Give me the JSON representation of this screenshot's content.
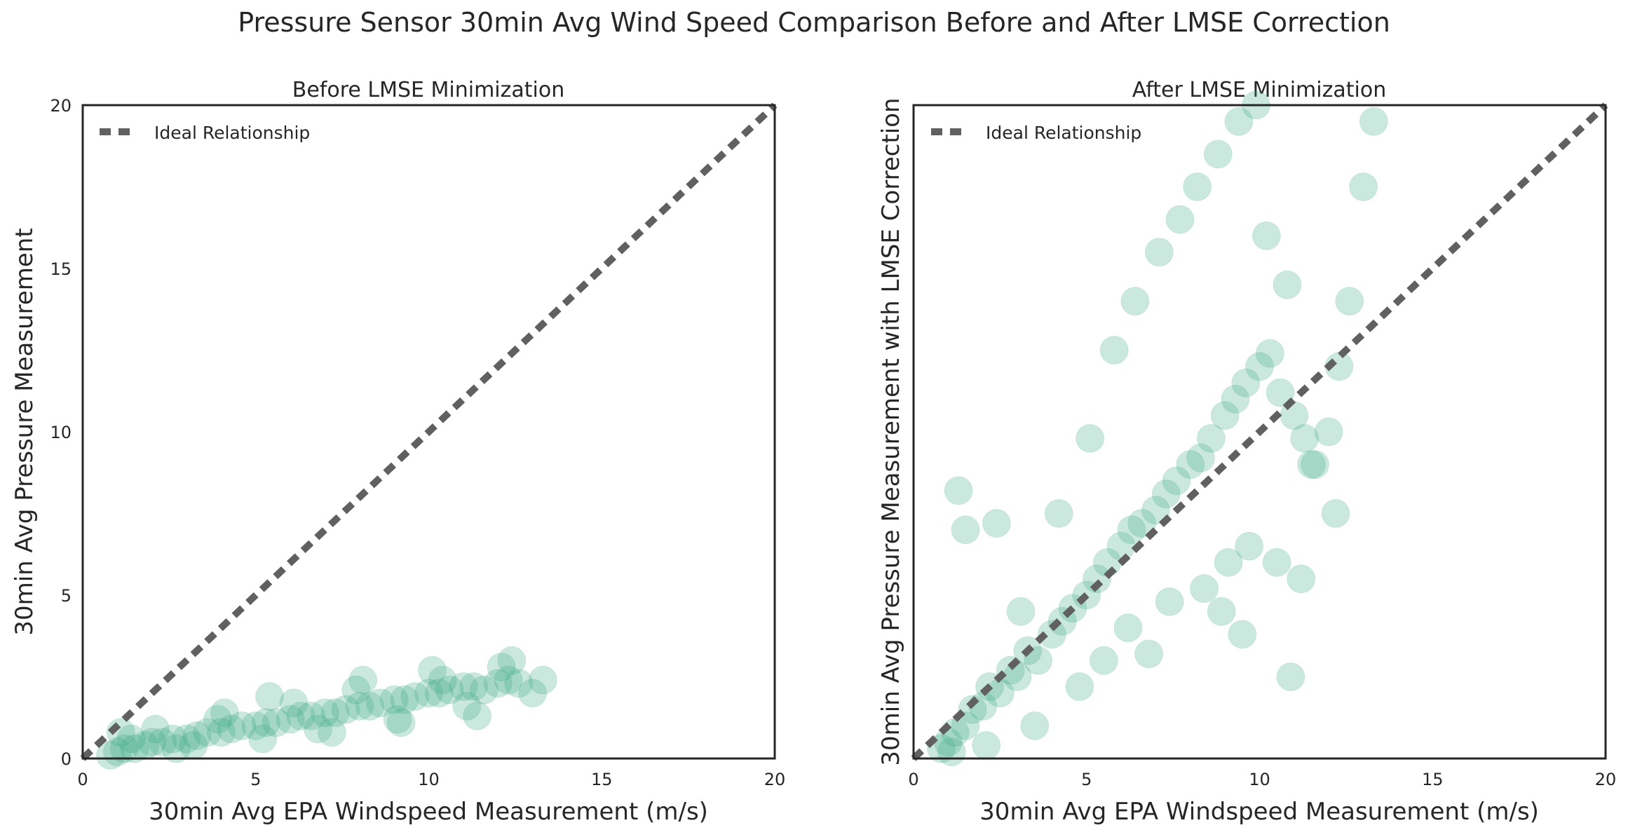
{
  "figure": {
    "title": "Pressure Sensor 30min Avg Wind Speed Comparison Before and After LMSE Correction"
  },
  "colors": {
    "points": "#3aa981",
    "ideal_line": "#606060",
    "axes": "#262626"
  },
  "chart_data": [
    {
      "type": "scatter",
      "title": "Before LMSE Minimization",
      "xlabel": "30min Avg EPA Windspeed Measurement (m/s)",
      "ylabel": "30min Avg Pressure Measurement",
      "xlim": [
        0,
        20
      ],
      "ylim": [
        0,
        20
      ],
      "xticks": [
        0,
        5,
        10,
        15,
        20
      ],
      "yticks": [
        0,
        5,
        10,
        15,
        20
      ],
      "ytick_labels_visible": true,
      "grid": false,
      "legend": {
        "position": "top-left",
        "entries": [
          "Ideal Relationship"
        ]
      },
      "reference_line": {
        "name": "Ideal Relationship",
        "x": [
          0,
          20
        ],
        "y": [
          0,
          20
        ],
        "style": "dashed"
      },
      "point_alpha": 0.12,
      "series": [
        {
          "x": [
            0.8,
            1.0,
            1.2,
            1.5,
            1.8,
            2.0,
            2.3,
            2.6,
            3.0,
            3.3,
            3.6,
            4.0,
            4.3,
            4.6,
            5.0,
            5.3,
            5.6,
            6.0,
            6.3,
            6.6,
            7.0,
            7.3,
            7.6,
            8.0,
            8.3,
            8.6,
            9.0,
            9.3,
            9.6,
            10.0,
            10.3,
            10.6,
            11.0,
            11.3,
            11.6,
            12.0,
            12.3,
            12.6,
            13.0,
            13.3,
            1.1,
            2.1,
            3.2,
            4.1,
            5.2,
            6.1,
            7.2,
            8.1,
            9.2,
            10.1,
            11.1,
            12.1,
            1.4,
            2.7,
            3.9,
            5.4,
            6.8,
            7.9,
            9.1,
            10.4,
            11.4,
            12.4
          ],
          "y": [
            0.1,
            0.2,
            0.3,
            0.3,
            0.4,
            0.5,
            0.5,
            0.6,
            0.6,
            0.7,
            0.8,
            0.8,
            0.9,
            1.0,
            1.0,
            1.1,
            1.1,
            1.2,
            1.3,
            1.3,
            1.4,
            1.4,
            1.5,
            1.6,
            1.6,
            1.7,
            1.8,
            1.8,
            1.9,
            2.0,
            2.0,
            2.1,
            2.2,
            2.2,
            2.1,
            2.3,
            2.4,
            2.3,
            2.0,
            2.4,
            0.8,
            0.9,
            0.4,
            1.4,
            0.6,
            1.7,
            0.8,
            2.4,
            1.1,
            2.7,
            1.6,
            2.8,
            0.6,
            0.3,
            1.2,
            1.9,
            0.9,
            2.1,
            1.2,
            2.4,
            1.3,
            3.0
          ]
        }
      ]
    },
    {
      "type": "scatter",
      "title": "After LMSE Minimization",
      "xlabel": "30min Avg EPA Windspeed Measurement (m/s)",
      "ylabel": "30min Avg Pressure Measurement with LMSE Correction",
      "xlim": [
        0,
        20
      ],
      "ylim": [
        0,
        20
      ],
      "xticks": [
        0,
        5,
        10,
        15,
        20
      ],
      "yticks": [
        0,
        5,
        10,
        15,
        20
      ],
      "ytick_labels_visible": false,
      "grid": false,
      "legend": {
        "position": "top-left",
        "entries": [
          "Ideal Relationship"
        ]
      },
      "reference_line": {
        "name": "Ideal Relationship",
        "x": [
          0,
          20
        ],
        "y": [
          0,
          20
        ],
        "style": "dashed"
      },
      "point_alpha": 0.12,
      "series": [
        {
          "x": [
            0.8,
            1.0,
            1.2,
            1.5,
            1.7,
            2.0,
            2.2,
            2.5,
            2.8,
            3.0,
            3.3,
            3.6,
            4.0,
            4.3,
            4.6,
            5.0,
            5.3,
            5.6,
            6.0,
            6.3,
            6.6,
            7.0,
            7.3,
            7.6,
            8.0,
            8.3,
            8.6,
            9.0,
            9.3,
            9.6,
            10.0,
            10.3,
            10.6,
            11.0,
            11.3,
            11.6,
            12.0,
            12.3,
            12.6,
            13.0,
            13.3,
            1.3,
            1.5,
            2.4,
            3.1,
            4.2,
            5.1,
            5.8,
            6.4,
            7.1,
            7.7,
            8.2,
            8.8,
            9.4,
            9.9,
            10.2,
            10.8,
            11.5,
            12.2,
            4.8,
            5.5,
            6.2,
            7.4,
            8.4,
            9.1,
            9.7,
            10.5,
            11.2,
            1.1,
            2.1,
            3.5,
            6.8,
            8.9,
            9.5,
            10.9
          ],
          "y": [
            0.3,
            0.5,
            0.8,
            1.0,
            1.5,
            1.6,
            2.2,
            2.0,
            2.7,
            2.5,
            3.3,
            3.0,
            3.8,
            4.2,
            4.6,
            5.0,
            5.5,
            6.0,
            6.5,
            7.0,
            7.2,
            7.6,
            8.1,
            8.5,
            9.0,
            9.2,
            9.8,
            10.5,
            11.0,
            11.5,
            12.0,
            12.4,
            11.2,
            10.5,
            9.8,
            9.0,
            10.0,
            12.0,
            14.0,
            17.5,
            19.5,
            8.2,
            7.0,
            7.2,
            4.5,
            7.5,
            9.8,
            12.5,
            14.0,
            15.5,
            16.5,
            17.5,
            18.5,
            19.5,
            20.0,
            16.0,
            14.5,
            9.0,
            7.5,
            2.2,
            3.0,
            4.0,
            4.8,
            5.2,
            6.0,
            6.5,
            6.0,
            5.5,
            0.2,
            0.4,
            1.0,
            3.2,
            4.5,
            3.8,
            2.5
          ]
        }
      ]
    }
  ]
}
